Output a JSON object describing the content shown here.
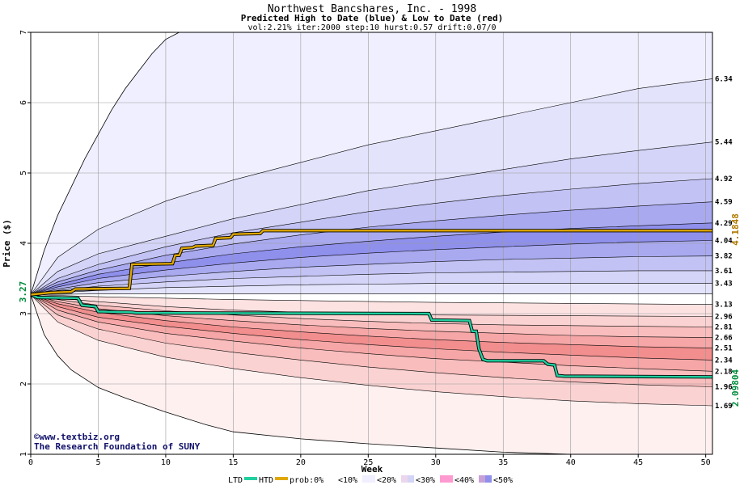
{
  "chart_data": {
    "type": "area",
    "title": "Northwest Bancshares, Inc. - 1998",
    "subtitle": "Predicted High to Date (blue) &  Low to Date (red)",
    "params": "vol:2.21% iter:2000 step:10 hurst:0.57 drift:0.07/0",
    "xlabel": "Week",
    "ylabel": "Price ($)",
    "xlim": [
      0,
      50.5
    ],
    "ylim": [
      1,
      7
    ],
    "xticks": [
      "0",
      "5",
      "10",
      "15",
      "20",
      "25",
      "30",
      "35",
      "40",
      "45",
      "50"
    ],
    "yticks": [
      "1",
      "2",
      "3",
      "4",
      "5",
      "6",
      "7"
    ],
    "grid": true,
    "start_price": 3.27,
    "start_label": "3.27",
    "htd_final_label": "4.1848",
    "ltd_final_label": "2.09804",
    "outer_high": [
      [
        0,
        3.27
      ],
      [
        1,
        3.9
      ],
      [
        2,
        4.4
      ],
      [
        3,
        4.8
      ],
      [
        4,
        5.2
      ],
      [
        5,
        5.55
      ],
      [
        6,
        5.9
      ],
      [
        7,
        6.2
      ],
      [
        8,
        6.45
      ],
      [
        9,
        6.7
      ],
      [
        10,
        6.9
      ],
      [
        11,
        7.05
      ]
    ],
    "outer_low": [
      [
        0,
        3.27
      ],
      [
        1,
        2.7
      ],
      [
        2,
        2.4
      ],
      [
        3,
        2.2
      ],
      [
        5,
        1.95
      ],
      [
        7,
        1.8
      ],
      [
        10,
        1.6
      ],
      [
        13,
        1.42
      ],
      [
        15,
        1.32
      ],
      [
        20,
        1.22
      ],
      [
        25,
        1.15
      ],
      [
        30,
        1.09
      ],
      [
        35,
        1.03
      ],
      [
        40,
        0.98
      ]
    ],
    "high_bands": [
      {
        "label": "6.34",
        "points": [
          [
            0,
            3.27
          ],
          [
            2,
            3.8
          ],
          [
            5,
            4.2
          ],
          [
            10,
            4.6
          ],
          [
            15,
            4.9
          ],
          [
            20,
            5.15
          ],
          [
            25,
            5.4
          ],
          [
            30,
            5.6
          ],
          [
            35,
            5.8
          ],
          [
            40,
            6.0
          ],
          [
            45,
            6.2
          ],
          [
            50.5,
            6.34
          ]
        ]
      },
      {
        "label": "5.44",
        "points": [
          [
            0,
            3.27
          ],
          [
            2,
            3.6
          ],
          [
            5,
            3.85
          ],
          [
            10,
            4.1
          ],
          [
            15,
            4.35
          ],
          [
            20,
            4.55
          ],
          [
            25,
            4.75
          ],
          [
            30,
            4.9
          ],
          [
            35,
            5.05
          ],
          [
            40,
            5.2
          ],
          [
            45,
            5.32
          ],
          [
            50.5,
            5.44
          ]
        ]
      },
      {
        "label": "4.92",
        "points": [
          [
            0,
            3.27
          ],
          [
            2,
            3.5
          ],
          [
            5,
            3.7
          ],
          [
            10,
            3.95
          ],
          [
            15,
            4.15
          ],
          [
            20,
            4.3
          ],
          [
            25,
            4.45
          ],
          [
            30,
            4.57
          ],
          [
            35,
            4.68
          ],
          [
            40,
            4.77
          ],
          [
            45,
            4.85
          ],
          [
            50.5,
            4.92
          ]
        ]
      },
      {
        "label": "4.59",
        "points": [
          [
            0,
            3.27
          ],
          [
            2,
            3.45
          ],
          [
            5,
            3.62
          ],
          [
            10,
            3.83
          ],
          [
            15,
            3.99
          ],
          [
            20,
            4.12
          ],
          [
            25,
            4.23
          ],
          [
            30,
            4.32
          ],
          [
            35,
            4.4
          ],
          [
            40,
            4.47
          ],
          [
            45,
            4.53
          ],
          [
            50.5,
            4.59
          ]
        ]
      },
      {
        "label": "4.29",
        "points": [
          [
            0,
            3.27
          ],
          [
            2,
            3.41
          ],
          [
            5,
            3.56
          ],
          [
            10,
            3.72
          ],
          [
            15,
            3.85
          ],
          [
            20,
            3.95
          ],
          [
            25,
            4.03
          ],
          [
            30,
            4.1
          ],
          [
            35,
            4.16
          ],
          [
            40,
            4.21
          ],
          [
            45,
            4.25
          ],
          [
            50.5,
            4.29
          ]
        ]
      },
      {
        "label": "4.04",
        "points": [
          [
            0,
            3.27
          ],
          [
            2,
            3.38
          ],
          [
            5,
            3.5
          ],
          [
            10,
            3.62
          ],
          [
            15,
            3.72
          ],
          [
            20,
            3.8
          ],
          [
            25,
            3.86
          ],
          [
            30,
            3.91
          ],
          [
            35,
            3.95
          ],
          [
            40,
            3.99
          ],
          [
            45,
            4.02
          ],
          [
            50.5,
            4.04
          ]
        ]
      },
      {
        "label": "3.82",
        "points": [
          [
            0,
            3.27
          ],
          [
            2,
            3.35
          ],
          [
            5,
            3.44
          ],
          [
            10,
            3.53
          ],
          [
            15,
            3.6
          ],
          [
            20,
            3.66
          ],
          [
            25,
            3.7
          ],
          [
            30,
            3.74
          ],
          [
            35,
            3.77
          ],
          [
            40,
            3.79
          ],
          [
            45,
            3.81
          ],
          [
            50.5,
            3.82
          ]
        ]
      },
      {
        "label": "3.61",
        "points": [
          [
            0,
            3.27
          ],
          [
            2,
            3.33
          ],
          [
            5,
            3.39
          ],
          [
            10,
            3.45
          ],
          [
            15,
            3.5
          ],
          [
            20,
            3.53
          ],
          [
            25,
            3.56
          ],
          [
            30,
            3.58
          ],
          [
            35,
            3.59
          ],
          [
            40,
            3.6
          ],
          [
            45,
            3.61
          ],
          [
            50.5,
            3.61
          ]
        ]
      },
      {
        "label": "3.43",
        "points": [
          [
            0,
            3.27
          ],
          [
            2,
            3.3
          ],
          [
            5,
            3.33
          ],
          [
            10,
            3.37
          ],
          [
            15,
            3.39
          ],
          [
            20,
            3.41
          ],
          [
            25,
            3.42
          ],
          [
            30,
            3.43
          ],
          [
            40,
            3.43
          ],
          [
            50.5,
            3.43
          ]
        ]
      },
      {
        "label": "",
        "points": [
          [
            0,
            3.27
          ],
          [
            5,
            3.28
          ],
          [
            15,
            3.28
          ],
          [
            50.5,
            3.28
          ]
        ]
      }
    ],
    "low_bands": [
      {
        "label": "3.13",
        "points": [
          [
            0,
            3.27
          ],
          [
            5,
            3.24
          ],
          [
            15,
            3.2
          ],
          [
            30,
            3.16
          ],
          [
            50.5,
            3.13
          ]
        ]
      },
      {
        "label": "2.96",
        "points": [
          [
            0,
            3.27
          ],
          [
            2,
            3.22
          ],
          [
            5,
            3.17
          ],
          [
            10,
            3.1
          ],
          [
            15,
            3.05
          ],
          [
            20,
            3.02
          ],
          [
            25,
            3.0
          ],
          [
            30,
            2.98
          ],
          [
            40,
            2.97
          ],
          [
            50.5,
            2.96
          ]
        ]
      },
      {
        "label": "2.81",
        "points": [
          [
            0,
            3.27
          ],
          [
            2,
            3.2
          ],
          [
            5,
            3.12
          ],
          [
            10,
            3.04
          ],
          [
            15,
            2.98
          ],
          [
            20,
            2.93
          ],
          [
            25,
            2.89
          ],
          [
            30,
            2.86
          ],
          [
            35,
            2.84
          ],
          [
            40,
            2.83
          ],
          [
            45,
            2.82
          ],
          [
            50.5,
            2.81
          ]
        ]
      },
      {
        "label": "2.66",
        "points": [
          [
            0,
            3.27
          ],
          [
            2,
            3.17
          ],
          [
            5,
            3.07
          ],
          [
            10,
            2.97
          ],
          [
            15,
            2.9
          ],
          [
            20,
            2.84
          ],
          [
            25,
            2.79
          ],
          [
            30,
            2.75
          ],
          [
            35,
            2.72
          ],
          [
            40,
            2.69
          ],
          [
            45,
            2.67
          ],
          [
            50.5,
            2.66
          ]
        ]
      },
      {
        "label": "2.51",
        "points": [
          [
            0,
            3.27
          ],
          [
            2,
            3.14
          ],
          [
            5,
            3.02
          ],
          [
            10,
            2.9
          ],
          [
            15,
            2.81
          ],
          [
            20,
            2.74
          ],
          [
            25,
            2.68
          ],
          [
            30,
            2.63
          ],
          [
            35,
            2.59
          ],
          [
            40,
            2.56
          ],
          [
            45,
            2.53
          ],
          [
            50.5,
            2.51
          ]
        ]
      },
      {
        "label": "2.34",
        "points": [
          [
            0,
            3.27
          ],
          [
            2,
            3.1
          ],
          [
            5,
            2.95
          ],
          [
            10,
            2.82
          ],
          [
            15,
            2.72
          ],
          [
            20,
            2.63
          ],
          [
            25,
            2.56
          ],
          [
            30,
            2.5
          ],
          [
            35,
            2.45
          ],
          [
            40,
            2.41
          ],
          [
            45,
            2.37
          ],
          [
            50.5,
            2.34
          ]
        ]
      },
      {
        "label": "2.18",
        "points": [
          [
            0,
            3.27
          ],
          [
            2,
            3.05
          ],
          [
            5,
            2.88
          ],
          [
            10,
            2.72
          ],
          [
            15,
            2.61
          ],
          [
            20,
            2.51
          ],
          [
            25,
            2.43
          ],
          [
            30,
            2.36
          ],
          [
            35,
            2.31
          ],
          [
            40,
            2.26
          ],
          [
            45,
            2.22
          ],
          [
            50.5,
            2.18
          ]
        ]
      },
      {
        "label": "1.96",
        "points": [
          [
            0,
            3.27
          ],
          [
            2,
            2.98
          ],
          [
            5,
            2.78
          ],
          [
            10,
            2.58
          ],
          [
            15,
            2.45
          ],
          [
            20,
            2.34
          ],
          [
            25,
            2.24
          ],
          [
            30,
            2.16
          ],
          [
            35,
            2.09
          ],
          [
            40,
            2.03
          ],
          [
            45,
            1.99
          ],
          [
            50.5,
            1.96
          ]
        ]
      },
      {
        "label": "1.69",
        "points": [
          [
            0,
            3.27
          ],
          [
            2,
            2.88
          ],
          [
            5,
            2.62
          ],
          [
            10,
            2.38
          ],
          [
            15,
            2.22
          ],
          [
            20,
            2.09
          ],
          [
            25,
            1.98
          ],
          [
            30,
            1.89
          ],
          [
            35,
            1.82
          ],
          [
            40,
            1.76
          ],
          [
            45,
            1.72
          ],
          [
            50.5,
            1.69
          ]
        ]
      }
    ],
    "htd_series": [
      [
        0,
        3.27
      ],
      [
        1.5,
        3.3
      ],
      [
        3,
        3.31
      ],
      [
        3.3,
        3.35
      ],
      [
        7.3,
        3.36
      ],
      [
        7.5,
        3.7
      ],
      [
        10.5,
        3.71
      ],
      [
        10.7,
        3.83
      ],
      [
        11,
        3.83
      ],
      [
        11.2,
        3.93
      ],
      [
        12,
        3.94
      ],
      [
        12.2,
        3.96
      ],
      [
        13.5,
        3.97
      ],
      [
        13.7,
        4.07
      ],
      [
        14.8,
        4.08
      ],
      [
        15,
        4.13
      ],
      [
        17,
        4.14
      ],
      [
        17.2,
        4.18
      ],
      [
        50.5,
        4.18
      ]
    ],
    "ltd_series": [
      [
        0,
        3.27
      ],
      [
        0.5,
        3.23
      ],
      [
        3.5,
        3.22
      ],
      [
        3.8,
        3.12
      ],
      [
        4.8,
        3.1
      ],
      [
        5,
        3.03
      ],
      [
        7.5,
        3.02
      ],
      [
        7.8,
        3.01
      ],
      [
        29.5,
        3.0
      ],
      [
        29.7,
        2.91
      ],
      [
        32.5,
        2.9
      ],
      [
        32.7,
        2.75
      ],
      [
        33,
        2.75
      ],
      [
        33.2,
        2.5
      ],
      [
        33.5,
        2.35
      ],
      [
        33.8,
        2.33
      ],
      [
        38,
        2.33
      ],
      [
        38.3,
        2.28
      ],
      [
        38.8,
        2.27
      ],
      [
        39,
        2.12
      ],
      [
        39.5,
        2.11
      ],
      [
        50.5,
        2.1
      ]
    ],
    "colors": {
      "high_fills": [
        "#efefff",
        "#e3e3fc",
        "#d4d4f8",
        "#c2c2f4",
        "#a9a9f0",
        "#8f8fec",
        "#a9a9f0",
        "#c2c2f4",
        "#d4d4f8",
        "#e3e3fc"
      ],
      "low_fills": [
        "#fff0f0",
        "#fde2e2",
        "#fbd2d2",
        "#f9bdbd",
        "#f6a6a6",
        "#f28e8e",
        "#f6a6a6",
        "#f9bdbd",
        "#fbd2d2"
      ],
      "htd_line": "#e0a800",
      "ltd_line": "#20d0a0",
      "htd_label": "#b07800",
      "ltd_label": "#008a3a",
      "credit": "#10106a"
    }
  },
  "credit_line1": "©www.textbiz.org",
  "credit_line2": "The Research Foundation of SUNY",
  "legend": {
    "ltd": "LTD",
    "htd": "HTD",
    "prob": "prob:0%",
    "items": [
      "<10%",
      "<20%",
      "<30%",
      "<40%",
      "<50%"
    ]
  }
}
